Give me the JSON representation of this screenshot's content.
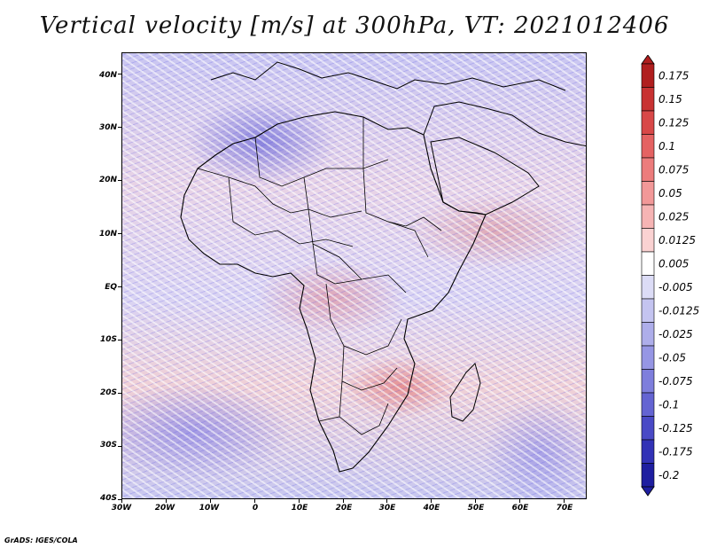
{
  "title": "Vertical velocity [m/s] at 300hPa, VT: 2021012406",
  "credit": "GrADS: IGES/COLA",
  "map": {
    "latitude_labels": [
      "40N",
      "30N",
      "20N",
      "10N",
      "EQ",
      "10S",
      "20S",
      "30S",
      "40S"
    ],
    "longitude_labels": [
      "30W",
      "20W",
      "10W",
      "0",
      "10E",
      "20E",
      "30E",
      "40E",
      "50E",
      "60E",
      "70E"
    ]
  },
  "colorbar": {
    "labels": [
      "0.175",
      "0.15",
      "0.125",
      "0.1",
      "0.075",
      "0.05",
      "0.025",
      "0.0125",
      "0.005",
      "-0.005",
      "-0.0125",
      "-0.025",
      "-0.05",
      "-0.075",
      "-0.1",
      "-0.125",
      "-0.175",
      "-0.2"
    ],
    "colors": [
      "#b01e1e",
      "#c83232",
      "#d84848",
      "#e46262",
      "#ec7c7c",
      "#f29898",
      "#f6b4b4",
      "#fad2d2",
      "#ffffff",
      "#dcdcf6",
      "#c4c4f0",
      "#aeaeea",
      "#9696e4",
      "#7e7edc",
      "#6464d2",
      "#4a4ac6",
      "#3232b6",
      "#1e1ea0"
    ]
  }
}
